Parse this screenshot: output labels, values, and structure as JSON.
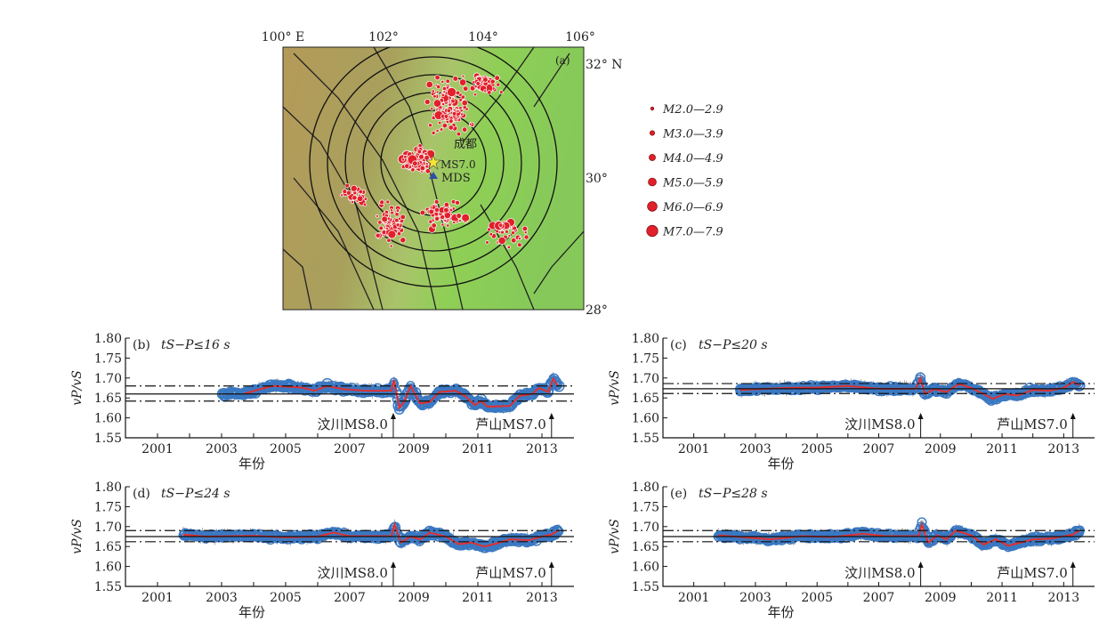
{
  "map": {
    "panel_label": "(a)",
    "lon_labels": [
      "100° E",
      "102°",
      "104°",
      "106°"
    ],
    "lat_labels": [
      "32° N",
      "30°",
      "28°"
    ],
    "city_label": "成都",
    "epicenter_label": "MS7.0",
    "station_label": "MDS",
    "legend": [
      "M2.0—2.9",
      "M3.0—3.9",
      "M4.0—4.9",
      "M5.0—5.9",
      "M6.0—6.9",
      "M7.0—7.9"
    ],
    "colors": {
      "quake": "#e0202a",
      "station": "#2e4fa8",
      "star": "#f5e536"
    }
  },
  "chart_data": [
    {
      "type": "scatter+line",
      "panel": "(b)",
      "title": "tS−P≤16 s",
      "xlabel": "年份",
      "ylabel": "vP/vS",
      "xlim": [
        2000,
        2014
      ],
      "ylim": [
        1.55,
        1.8
      ],
      "xticks": [
        "2001",
        "2003",
        "2005",
        "2007",
        "2009",
        "2011",
        "2013"
      ],
      "yticks": [
        "1.80",
        "1.75",
        "1.70",
        "1.65",
        "1.60",
        "1.55"
      ],
      "mean": 1.66,
      "band": [
        1.642,
        1.68
      ],
      "start": 2003.0,
      "annotations": [
        "汶川MS8.0",
        "芦山MS7.0"
      ],
      "events": [
        2008.36,
        2013.3
      ],
      "line": [
        [
          2003.7,
          1.66
        ],
        [
          2004.2,
          1.672
        ],
        [
          2004.6,
          1.68
        ],
        [
          2005.5,
          1.676
        ],
        [
          2005.9,
          1.668
        ],
        [
          2006.3,
          1.68
        ],
        [
          2006.8,
          1.672
        ],
        [
          2007.5,
          1.668
        ],
        [
          2008.3,
          1.668
        ],
        [
          2008.38,
          1.695
        ],
        [
          2008.55,
          1.625
        ],
        [
          2008.7,
          1.64
        ],
        [
          2008.9,
          1.68
        ],
        [
          2009.2,
          1.636
        ],
        [
          2009.5,
          1.64
        ],
        [
          2009.8,
          1.665
        ],
        [
          2010.3,
          1.668
        ],
        [
          2010.6,
          1.655
        ],
        [
          2010.9,
          1.632
        ],
        [
          2011.1,
          1.642
        ],
        [
          2011.3,
          1.628
        ],
        [
          2012.0,
          1.63
        ],
        [
          2012.3,
          1.655
        ],
        [
          2012.7,
          1.66
        ],
        [
          2012.9,
          1.675
        ],
        [
          2013.2,
          1.665
        ],
        [
          2013.35,
          1.698
        ],
        [
          2013.5,
          1.68
        ]
      ]
    },
    {
      "type": "scatter+line",
      "panel": "(c)",
      "title": "tS−P≤20 s",
      "xlabel": "年份",
      "ylabel": "vP/vS",
      "xlim": [
        2000,
        2014
      ],
      "ylim": [
        1.55,
        1.8
      ],
      "xticks": [
        "2001",
        "2003",
        "2005",
        "2007",
        "2009",
        "2011",
        "2013"
      ],
      "yticks": [
        "1.80",
        "1.75",
        "1.70",
        "1.65",
        "1.60",
        "1.55"
      ],
      "mean": 1.673,
      "band": [
        1.661,
        1.686
      ],
      "start": 2002.5,
      "annotations": [
        "汶川MS8.0",
        "芦山MS7.0"
      ],
      "events": [
        2008.36,
        2013.3
      ],
      "line": [
        [
          2002.5,
          1.67
        ],
        [
          2003,
          1.672
        ],
        [
          2004,
          1.675
        ],
        [
          2005,
          1.676
        ],
        [
          2006,
          1.68
        ],
        [
          2007,
          1.673
        ],
        [
          2008.2,
          1.673
        ],
        [
          2008.35,
          1.7
        ],
        [
          2008.5,
          1.66
        ],
        [
          2008.8,
          1.672
        ],
        [
          2009.2,
          1.665
        ],
        [
          2009.6,
          1.685
        ],
        [
          2010,
          1.675
        ],
        [
          2010.4,
          1.66
        ],
        [
          2010.7,
          1.648
        ],
        [
          2011.1,
          1.66
        ],
        [
          2011.5,
          1.656
        ],
        [
          2012,
          1.67
        ],
        [
          2012.5,
          1.668
        ],
        [
          2013,
          1.675
        ],
        [
          2013.3,
          1.69
        ],
        [
          2013.5,
          1.682
        ]
      ]
    },
    {
      "type": "scatter+line",
      "panel": "(d)",
      "title": "tS−P≤24 s",
      "xlabel": "年份",
      "ylabel": "vP/vS",
      "xlim": [
        2000,
        2014
      ],
      "ylim": [
        1.55,
        1.8
      ],
      "xticks": [
        "2001",
        "2003",
        "2005",
        "2007",
        "2009",
        "2011",
        "2013"
      ],
      "yticks": [
        "1.80",
        "1.75",
        "1.70",
        "1.65",
        "1.60",
        "1.55"
      ],
      "mean": 1.675,
      "band": [
        1.662,
        1.69
      ],
      "start": 2001.8,
      "annotations": [
        "汶川MS8.0",
        "芦山MS7.0"
      ],
      "events": [
        2008.36,
        2013.3
      ],
      "line": [
        [
          2001.8,
          1.68
        ],
        [
          2002.5,
          1.675
        ],
        [
          2004,
          1.677
        ],
        [
          2005,
          1.673
        ],
        [
          2006,
          1.675
        ],
        [
          2006.5,
          1.685
        ],
        [
          2007,
          1.676
        ],
        [
          2008.3,
          1.676
        ],
        [
          2008.4,
          1.705
        ],
        [
          2008.6,
          1.66
        ],
        [
          2008.9,
          1.675
        ],
        [
          2009.2,
          1.668
        ],
        [
          2009.5,
          1.685
        ],
        [
          2010,
          1.675
        ],
        [
          2010.4,
          1.656
        ],
        [
          2010.8,
          1.66
        ],
        [
          2011.2,
          1.65
        ],
        [
          2011.6,
          1.658
        ],
        [
          2012,
          1.668
        ],
        [
          2012.6,
          1.666
        ],
        [
          2013,
          1.675
        ],
        [
          2013.3,
          1.68
        ],
        [
          2013.5,
          1.69
        ]
      ]
    },
    {
      "type": "scatter+line",
      "panel": "(e)",
      "title": "tS−P≤28 s",
      "xlabel": "年份",
      "ylabel": "vP/vS",
      "xlim": [
        2000,
        2014
      ],
      "ylim": [
        1.55,
        1.8
      ],
      "xticks": [
        "2001",
        "2003",
        "2005",
        "2007",
        "2009",
        "2011",
        "2013"
      ],
      "yticks": [
        "1.80",
        "1.75",
        "1.70",
        "1.65",
        "1.60",
        "1.55"
      ],
      "mean": 1.675,
      "band": [
        1.662,
        1.69
      ],
      "start": 2001.8,
      "annotations": [
        "汶川MS8.0",
        "芦山MS7.0"
      ],
      "events": [
        2008.36,
        2013.3
      ],
      "line": [
        [
          2001.8,
          1.678
        ],
        [
          2002.5,
          1.674
        ],
        [
          2003.5,
          1.668
        ],
        [
          2004.5,
          1.676
        ],
        [
          2005.5,
          1.674
        ],
        [
          2006.5,
          1.682
        ],
        [
          2007.2,
          1.676
        ],
        [
          2008.3,
          1.676
        ],
        [
          2008.4,
          1.705
        ],
        [
          2008.6,
          1.66
        ],
        [
          2008.9,
          1.678
        ],
        [
          2009.2,
          1.668
        ],
        [
          2009.5,
          1.69
        ],
        [
          2010,
          1.678
        ],
        [
          2010.4,
          1.655
        ],
        [
          2010.8,
          1.668
        ],
        [
          2011.2,
          1.652
        ],
        [
          2011.6,
          1.66
        ],
        [
          2012,
          1.668
        ],
        [
          2012.6,
          1.67
        ],
        [
          2013,
          1.676
        ],
        [
          2013.3,
          1.68
        ],
        [
          2013.5,
          1.69
        ]
      ]
    }
  ]
}
